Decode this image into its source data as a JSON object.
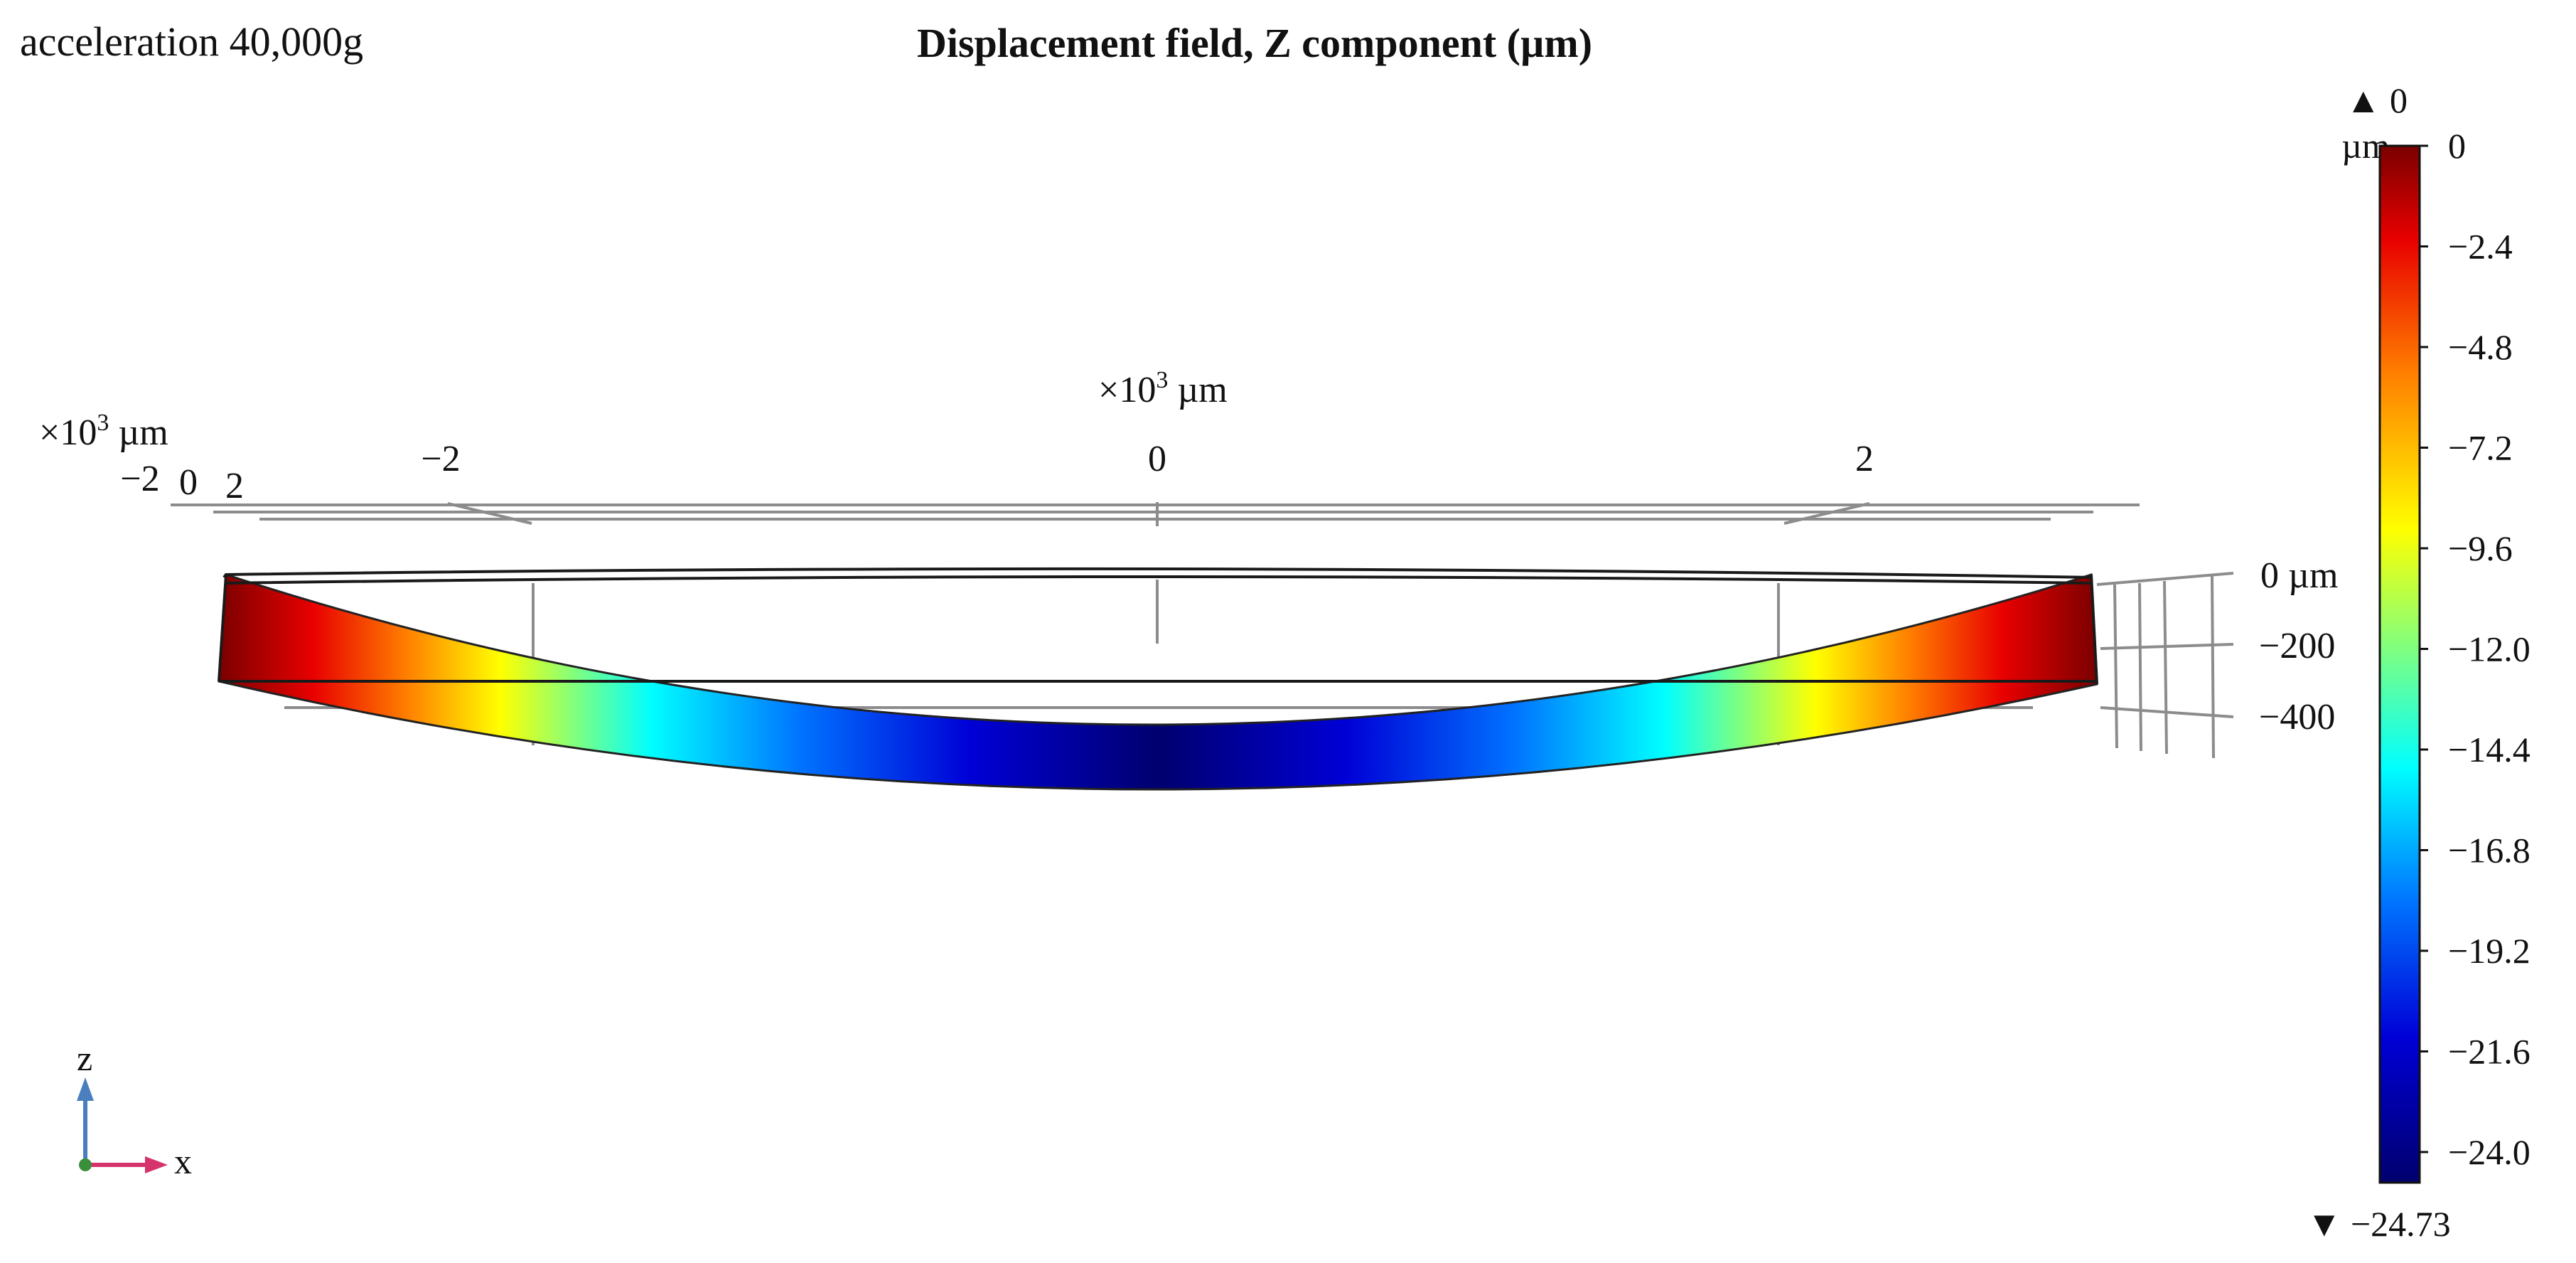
{
  "header": {
    "load_case": "acceleration 40,000g",
    "plot_title": "Displacement field, Z component (µm)"
  },
  "axes": {
    "x_axis": {
      "unit_label": "×10³ µm",
      "tick_labels": [
        "−2",
        "0",
        "2"
      ]
    },
    "y_axis": {
      "unit_label": "×10³ µm",
      "tick_labels": [
        "−2",
        "0",
        "2"
      ]
    },
    "z_axis": {
      "tick_labels": [
        "0 µm",
        "−200",
        "−400"
      ]
    }
  },
  "colorbar": {
    "max_marker": "▲ 0",
    "unit": "µm",
    "ticks": [
      "0",
      "−2.4",
      "−4.8",
      "−7.2",
      "−9.6",
      "−12.0",
      "−14.4",
      "−16.8",
      "−19.2",
      "−21.6",
      "−24.0"
    ],
    "tick_values": [
      0,
      -2.4,
      -4.8,
      -7.2,
      -9.6,
      -12.0,
      -14.4,
      -16.8,
      -19.2,
      -21.6,
      -24.0
    ],
    "range": [
      -24.73,
      0
    ],
    "min_marker": "▼ −24.73",
    "colormap": [
      "#7a0000",
      "#e80000",
      "#ff7f00",
      "#ffff00",
      "#00ffff",
      "#0073ff",
      "#0000d6",
      "#00006e"
    ]
  },
  "triad": {
    "z_label": "z",
    "x_label": "x",
    "z_color": "#4a7fbf",
    "x_color": "#d6336c",
    "origin_color": "#3a8f3a"
  }
}
